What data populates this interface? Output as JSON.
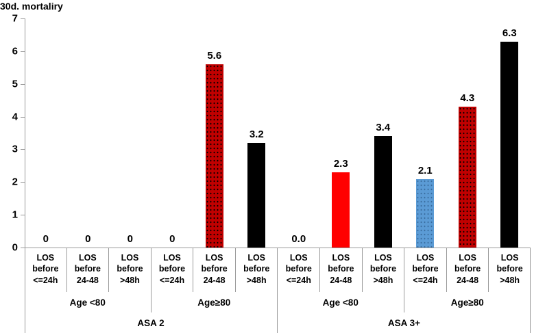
{
  "chart_data": {
    "type": "bar",
    "title": "30d. mortaliry",
    "ylabel": "",
    "xlabel": "",
    "ylim": [
      0,
      7
    ],
    "y_ticks": [
      0,
      1,
      2,
      3,
      4,
      5,
      6,
      7
    ],
    "grid": false,
    "legend": false,
    "colors": {
      "dark_red": "#C00000",
      "red": "#FF0000",
      "blue": "#5B9BD5",
      "black": "#000000",
      "axis_line": "#999999"
    },
    "bars": [
      {
        "los_lines": [
          "LOS",
          "before",
          "<=24h"
        ],
        "age": "Age <80",
        "asa": "ASA 2",
        "value": 0,
        "label": "0",
        "color": "#000000",
        "pattern": "solid"
      },
      {
        "los_lines": [
          "LOS",
          "before",
          "24-48"
        ],
        "age": "Age <80",
        "asa": "ASA 2",
        "value": 0,
        "label": "0",
        "color": "#000000",
        "pattern": "solid"
      },
      {
        "los_lines": [
          "LOS",
          "before",
          ">48h"
        ],
        "age": "Age <80",
        "asa": "ASA 2",
        "value": 0,
        "label": "0",
        "color": "#000000",
        "pattern": "solid"
      },
      {
        "los_lines": [
          "LOS",
          "before",
          "<=24h"
        ],
        "age": "Age≥80",
        "asa": "ASA 2",
        "value": 0,
        "label": "0",
        "color": "#000000",
        "pattern": "solid"
      },
      {
        "los_lines": [
          "LOS",
          "before",
          "24-48"
        ],
        "age": "Age≥80",
        "asa": "ASA 2",
        "value": 5.6,
        "label": "5.6",
        "color": "#C00000",
        "pattern": "dots-dark"
      },
      {
        "los_lines": [
          "LOS",
          "before",
          ">48h"
        ],
        "age": "Age≥80",
        "asa": "ASA 2",
        "value": 3.2,
        "label": "3.2",
        "color": "#000000",
        "pattern": "solid"
      },
      {
        "los_lines": [
          "LOS",
          "before",
          "<=24h"
        ],
        "age": "Age <80",
        "asa": "ASA 3+",
        "value": 0,
        "label": "0.0",
        "color": "#000000",
        "pattern": "solid"
      },
      {
        "los_lines": [
          "LOS",
          "before",
          "24-48"
        ],
        "age": "Age <80",
        "asa": "ASA 3+",
        "value": 2.3,
        "label": "2.3",
        "color": "#FF0000",
        "pattern": "solid"
      },
      {
        "los_lines": [
          "LOS",
          "before",
          ">48h"
        ],
        "age": "Age <80",
        "asa": "ASA 3+",
        "value": 3.4,
        "label": "3.4",
        "color": "#000000",
        "pattern": "solid"
      },
      {
        "los_lines": [
          "LOS",
          "before",
          "<=24h"
        ],
        "age": "Age≥80",
        "asa": "ASA 3+",
        "value": 2.1,
        "label": "2.1",
        "color": "#5B9BD5",
        "pattern": "dots-blue"
      },
      {
        "los_lines": [
          "LOS",
          "before",
          "24-48"
        ],
        "age": "Age≥80",
        "asa": "ASA 3+",
        "value": 4.3,
        "label": "4.3",
        "color": "#C00000",
        "pattern": "dots-dark"
      },
      {
        "los_lines": [
          "LOS",
          "before",
          ">48h"
        ],
        "age": "Age≥80",
        "asa": "ASA 3+",
        "value": 6.3,
        "label": "6.3",
        "color": "#000000",
        "pattern": "solid"
      }
    ],
    "age_groups": [
      {
        "label": "Age <80",
        "span": 3
      },
      {
        "label": "Age≥80",
        "span": 3
      },
      {
        "label": "Age <80",
        "span": 3
      },
      {
        "label": "Age≥80",
        "span": 3
      }
    ],
    "asa_groups": [
      {
        "label": "ASA 2",
        "span": 6
      },
      {
        "label": "ASA 3+",
        "span": 6
      }
    ]
  }
}
